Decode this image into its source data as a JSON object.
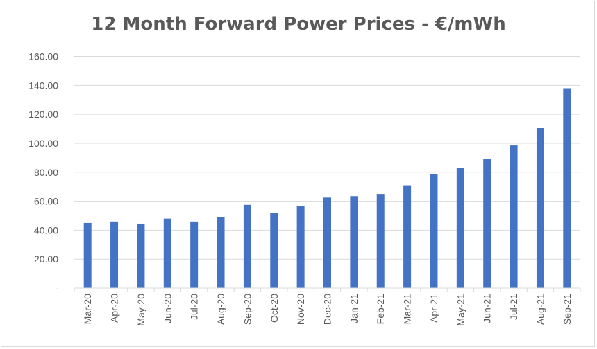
{
  "chart_data": {
    "type": "bar",
    "title": "12 Month Forward Power Prices - €/mWh",
    "xlabel": "",
    "ylabel": "",
    "categories": [
      "Mar-20",
      "Apr-20",
      "May-20",
      "Jun-20",
      "Jul-20",
      "Aug-20",
      "Sep-20",
      "Oct-20",
      "Nov-20",
      "Dec-20",
      "Jan-21",
      "Feb-21",
      "Mar-21",
      "Apr-21",
      "May-21",
      "Jun-21",
      "Jul-21",
      "Aug-21",
      "Sep-21"
    ],
    "values": [
      45,
      46,
      44.5,
      48,
      46,
      49,
      57.5,
      52,
      56.5,
      62.5,
      63.5,
      65,
      71,
      78.5,
      83,
      89,
      98.5,
      110.5,
      138
    ],
    "ylim": [
      0,
      160
    ],
    "yticks": [
      0,
      20,
      40,
      60,
      80,
      100,
      120,
      140,
      160
    ],
    "ytick_labels": [
      "-",
      "20.00",
      "40.00",
      "60.00",
      "80.00",
      "100.00",
      "120.00",
      "140.00",
      "160.00"
    ],
    "grid": true,
    "legend": "none",
    "bar_color": "#4472c4",
    "grid_color": "#d9d9d9"
  }
}
